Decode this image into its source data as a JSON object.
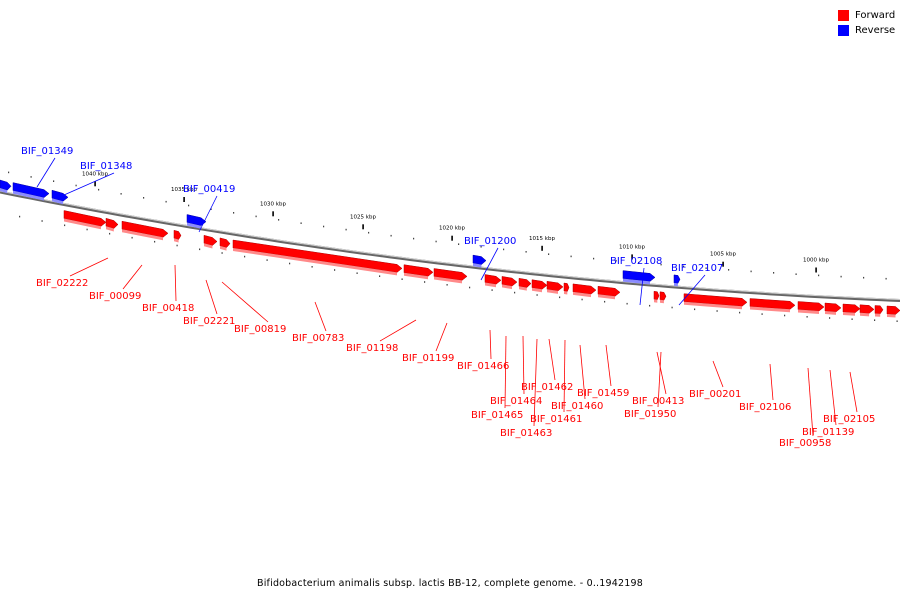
{
  "legend": {
    "forward_label": "Forward",
    "reverse_label": "Reverse",
    "forward_color": "#ff0000",
    "reverse_color": "#0000ff"
  },
  "caption": "Bifidobacterium animalis subsp. lactis BB-12, complete genome. - 0..1942198",
  "chart_data": {
    "type": "genome-map",
    "axis_ticks": [
      "1040 kbp",
      "1035 kbp",
      "1030 kbp",
      "1025 kbp",
      "1020 kbp",
      "1015 kbp",
      "1010 kbp",
      "1005 kbp",
      "1000 kbp"
    ],
    "genes": [
      {
        "id": "BIF_01349",
        "strand": "reverse"
      },
      {
        "id": "BIF_01348",
        "strand": "reverse"
      },
      {
        "id": "BIF_00419",
        "strand": "reverse"
      },
      {
        "id": "BIF_01200",
        "strand": "reverse"
      },
      {
        "id": "BIF_02108",
        "strand": "reverse"
      },
      {
        "id": "BIF_02107",
        "strand": "reverse"
      },
      {
        "id": "BIF_02222",
        "strand": "forward"
      },
      {
        "id": "BIF_00099",
        "strand": "forward"
      },
      {
        "id": "BIF_00418",
        "strand": "forward"
      },
      {
        "id": "BIF_02221",
        "strand": "forward"
      },
      {
        "id": "BIF_00819",
        "strand": "forward"
      },
      {
        "id": "BIF_00783",
        "strand": "forward"
      },
      {
        "id": "BIF_01198",
        "strand": "forward"
      },
      {
        "id": "BIF_01199",
        "strand": "forward"
      },
      {
        "id": "BIF_01466",
        "strand": "forward"
      },
      {
        "id": "BIF_01465",
        "strand": "forward"
      },
      {
        "id": "BIF_01464",
        "strand": "forward"
      },
      {
        "id": "BIF_01463",
        "strand": "forward"
      },
      {
        "id": "BIF_01462",
        "strand": "forward"
      },
      {
        "id": "BIF_01461",
        "strand": "forward"
      },
      {
        "id": "BIF_01460",
        "strand": "forward"
      },
      {
        "id": "BIF_01459",
        "strand": "forward"
      },
      {
        "id": "BIF_00413",
        "strand": "forward"
      },
      {
        "id": "BIF_01950",
        "strand": "forward"
      },
      {
        "id": "BIF_00201",
        "strand": "forward"
      },
      {
        "id": "BIF_02106",
        "strand": "forward"
      },
      {
        "id": "BIF_00958",
        "strand": "forward"
      },
      {
        "id": "BIF_01139",
        "strand": "forward"
      },
      {
        "id": "BIF_02105",
        "strand": "forward"
      }
    ]
  }
}
